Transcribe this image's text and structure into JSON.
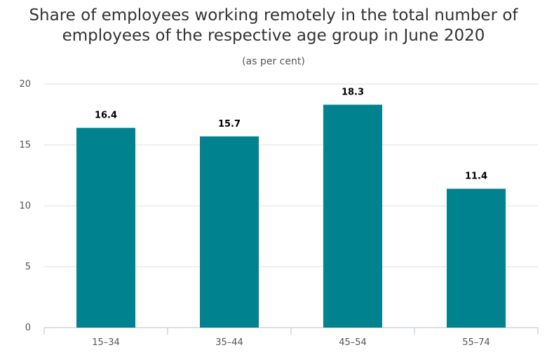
{
  "chart_data": {
    "type": "bar",
    "title_lines": [
      "Share of employees working remotely in the total number of",
      "employees of the respective age group in June 2020"
    ],
    "subtitle": "(as per cent)",
    "xlabel": "",
    "ylabel": "",
    "categories": [
      "15–34",
      "35–44",
      "45–54",
      "55–74"
    ],
    "values": [
      16.4,
      15.7,
      18.3,
      11.4
    ],
    "data_labels": [
      "16.4",
      "15.7",
      "18.3",
      "11.4"
    ],
    "ylim": [
      0,
      20
    ],
    "yticks": [
      0,
      5,
      10,
      15,
      20
    ],
    "grid": true,
    "legend": "none",
    "bar_color": "#00838f",
    "grid_color": "#d8dde3"
  }
}
